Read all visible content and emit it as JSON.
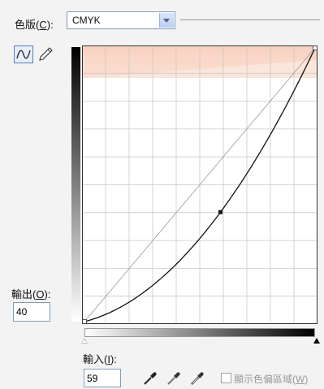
{
  "channel": {
    "label_prefix": "色版(",
    "label_key": "C",
    "label_suffix": "):",
    "value": "CMYK"
  },
  "tools": {
    "curve": "curve-tool",
    "pencil": "pencil-tool"
  },
  "output": {
    "label_prefix": "輸出(",
    "label_key": "O",
    "label_suffix": "):",
    "value": "40"
  },
  "input": {
    "label_prefix": "輸入(",
    "label_key": "I",
    "label_suffix": "):",
    "value": "59"
  },
  "clipping": {
    "label_prefix": "顯示色偏區域(",
    "label_key": "W",
    "label_suffix": ")",
    "checked": false
  },
  "curve": {
    "points": [
      [
        0,
        0
      ],
      [
        59,
        40
      ],
      [
        100,
        100
      ]
    ],
    "grid_divisions": 10
  },
  "icons": {
    "eyedroppers": [
      "black-eyedropper-icon",
      "gray-eyedropper-icon",
      "white-eyedropper-icon"
    ]
  }
}
